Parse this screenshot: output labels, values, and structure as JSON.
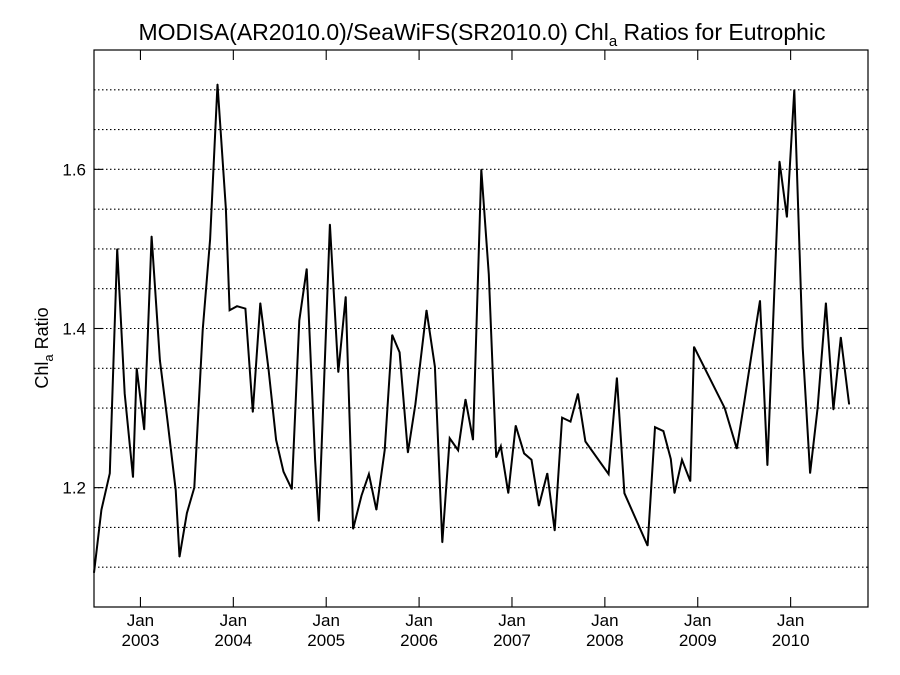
{
  "chart_data": {
    "type": "line",
    "title": {
      "prefix": "MODISA(AR2010.0)/SeaWiFS(SR2010.0)  Chl",
      "subscript": "a",
      "suffix": " Ratios for Eutrophic"
    },
    "ylabel": {
      "prefix": "Chl",
      "subscript": "a",
      "suffix": " Ratio"
    },
    "xlabel": "",
    "ylim": [
      1.05,
      1.75
    ],
    "y_ticks": [
      1.2,
      1.4,
      1.6
    ],
    "y_tick_labels": [
      "1.2",
      "1.4",
      "1.6"
    ],
    "y_gridlines": [
      1.1,
      1.15,
      1.2,
      1.25,
      1.3,
      1.35,
      1.4,
      1.45,
      1.5,
      1.55,
      1.6,
      1.65,
      1.7
    ],
    "grid": "horizontal dotted",
    "x_axis": {
      "range_years": [
        2002.5,
        2010.833
      ],
      "ticks": [
        {
          "month": "Jan",
          "year": "2003",
          "pos": 2003.0
        },
        {
          "month": "Jan",
          "year": "2004",
          "pos": 2004.0
        },
        {
          "month": "Jan",
          "year": "2005",
          "pos": 2005.0
        },
        {
          "month": "Jan",
          "year": "2006",
          "pos": 2006.0
        },
        {
          "month": "Jan",
          "year": "2007",
          "pos": 2007.0
        },
        {
          "month": "Jan",
          "year": "2008",
          "pos": 2008.0
        },
        {
          "month": "Jan",
          "year": "2009",
          "pos": 2009.0
        },
        {
          "month": "Jan",
          "year": "2010",
          "pos": 2010.0
        }
      ]
    },
    "series": [
      {
        "color": "#000000",
        "points": [
          [
            2002.5,
            1.093
          ],
          [
            2002.58,
            1.172
          ],
          [
            2002.67,
            1.218
          ],
          [
            2002.75,
            1.5
          ],
          [
            2002.83,
            1.318
          ],
          [
            2002.92,
            1.213
          ],
          [
            2002.96,
            1.35
          ],
          [
            2003.04,
            1.273
          ],
          [
            2003.12,
            1.516
          ],
          [
            2003.21,
            1.36
          ],
          [
            2003.29,
            1.285
          ],
          [
            2003.38,
            1.197
          ],
          [
            2003.42,
            1.113
          ],
          [
            2003.5,
            1.168
          ],
          [
            2003.58,
            1.2
          ],
          [
            2003.67,
            1.398
          ],
          [
            2003.75,
            1.512
          ],
          [
            2003.83,
            1.707
          ],
          [
            2003.92,
            1.55
          ],
          [
            2003.96,
            1.423
          ],
          [
            2004.04,
            1.428
          ],
          [
            2004.13,
            1.425
          ],
          [
            2004.21,
            1.295
          ],
          [
            2004.29,
            1.432
          ],
          [
            2004.38,
            1.348
          ],
          [
            2004.46,
            1.26
          ],
          [
            2004.54,
            1.22
          ],
          [
            2004.63,
            1.198
          ],
          [
            2004.71,
            1.41
          ],
          [
            2004.79,
            1.475
          ],
          [
            2004.88,
            1.235
          ],
          [
            2004.92,
            1.158
          ],
          [
            2005.0,
            1.404
          ],
          [
            2005.04,
            1.531
          ],
          [
            2005.13,
            1.345
          ],
          [
            2005.21,
            1.44
          ],
          [
            2005.29,
            1.148
          ],
          [
            2005.38,
            1.19
          ],
          [
            2005.46,
            1.217
          ],
          [
            2005.54,
            1.172
          ],
          [
            2005.63,
            1.247
          ],
          [
            2005.71,
            1.392
          ],
          [
            2005.79,
            1.37
          ],
          [
            2005.88,
            1.244
          ],
          [
            2005.96,
            1.305
          ],
          [
            2006.08,
            1.423
          ],
          [
            2006.17,
            1.352
          ],
          [
            2006.25,
            1.131
          ],
          [
            2006.33,
            1.262
          ],
          [
            2006.42,
            1.247
          ],
          [
            2006.5,
            1.311
          ],
          [
            2006.58,
            1.26
          ],
          [
            2006.67,
            1.6
          ],
          [
            2006.75,
            1.468
          ],
          [
            2006.83,
            1.238
          ],
          [
            2006.88,
            1.252
          ],
          [
            2006.96,
            1.193
          ],
          [
            2007.04,
            1.278
          ],
          [
            2007.13,
            1.243
          ],
          [
            2007.21,
            1.235
          ],
          [
            2007.29,
            1.177
          ],
          [
            2007.38,
            1.218
          ],
          [
            2007.46,
            1.146
          ],
          [
            2007.54,
            1.288
          ],
          [
            2007.63,
            1.283
          ],
          [
            2007.71,
            1.318
          ],
          [
            2007.79,
            1.258
          ],
          [
            2008.04,
            1.217
          ],
          [
            2008.13,
            1.338
          ],
          [
            2008.21,
            1.193
          ],
          [
            2008.46,
            1.127
          ],
          [
            2008.54,
            1.276
          ],
          [
            2008.63,
            1.271
          ],
          [
            2008.71,
            1.236
          ],
          [
            2008.75,
            1.193
          ],
          [
            2008.83,
            1.235
          ],
          [
            2008.92,
            1.208
          ],
          [
            2008.96,
            1.377
          ],
          [
            2009.29,
            1.3
          ],
          [
            2009.42,
            1.249
          ],
          [
            2009.5,
            1.307
          ],
          [
            2009.58,
            1.368
          ],
          [
            2009.67,
            1.435
          ],
          [
            2009.75,
            1.228
          ],
          [
            2009.88,
            1.61
          ],
          [
            2009.96,
            1.54
          ],
          [
            2010.04,
            1.7
          ],
          [
            2010.13,
            1.376
          ],
          [
            2010.21,
            1.218
          ],
          [
            2010.29,
            1.3
          ],
          [
            2010.38,
            1.432
          ],
          [
            2010.46,
            1.298
          ],
          [
            2010.54,
            1.389
          ],
          [
            2010.63,
            1.305
          ]
        ]
      }
    ]
  }
}
